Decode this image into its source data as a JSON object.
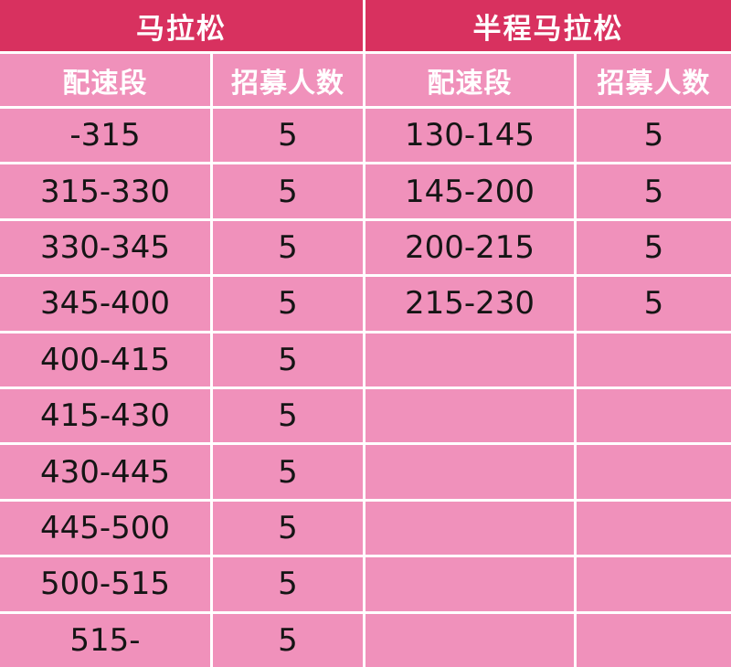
{
  "colors": {
    "title_bg": "#D8315F",
    "cell_bg": "#F091BB",
    "grid_line": "#FFFFFF",
    "header_text": "#FFFFFF",
    "data_text": "#151515"
  },
  "tables": [
    {
      "title": "马拉松",
      "columns": [
        "配速段",
        "招募人数"
      ],
      "rows": [
        [
          "-315",
          "5"
        ],
        [
          "315-330",
          "5"
        ],
        [
          "330-345",
          "5"
        ],
        [
          "345-400",
          "5"
        ],
        [
          "400-415",
          "5"
        ],
        [
          "415-430",
          "5"
        ],
        [
          "430-445",
          "5"
        ],
        [
          "445-500",
          "5"
        ],
        [
          "500-515",
          "5"
        ],
        [
          "515-",
          "5"
        ]
      ]
    },
    {
      "title": "半程马拉松",
      "columns": [
        "配速段",
        "招募人数"
      ],
      "rows": [
        [
          "130-145",
          "5"
        ],
        [
          "145-200",
          "5"
        ],
        [
          "200-215",
          "5"
        ],
        [
          "215-230",
          "5"
        ],
        [
          "",
          ""
        ],
        [
          "",
          ""
        ],
        [
          "",
          ""
        ],
        [
          "",
          ""
        ],
        [
          "",
          ""
        ],
        [
          "",
          ""
        ]
      ]
    }
  ]
}
